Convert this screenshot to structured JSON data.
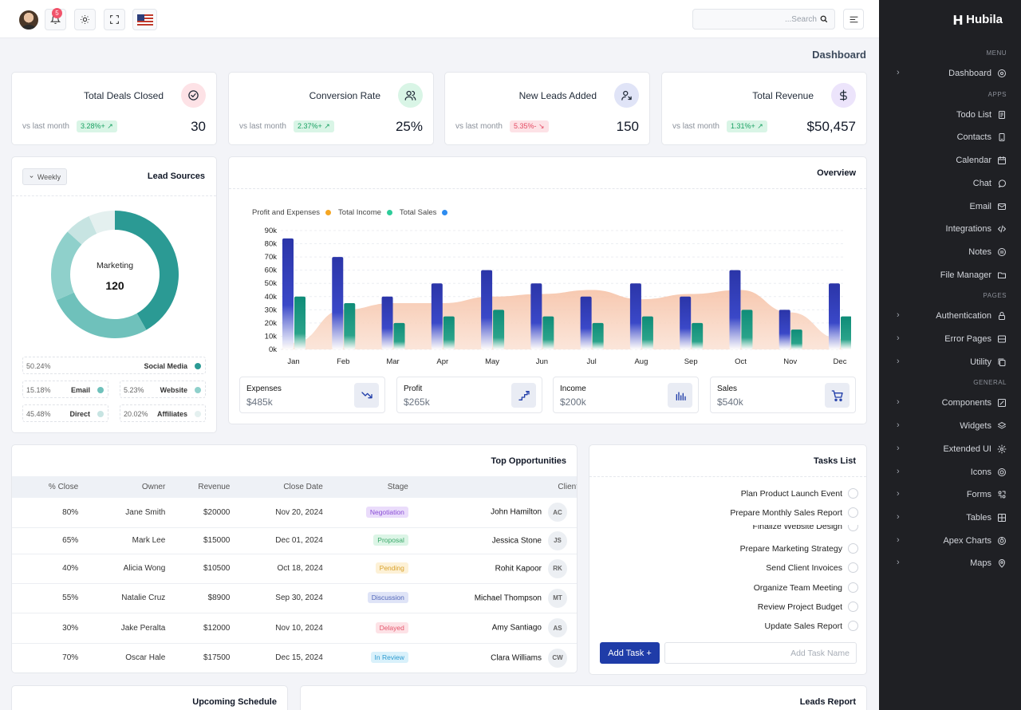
{
  "header": {
    "notifications_count": "5",
    "search_placeholder": "...Search"
  },
  "page_title": "Dashboard",
  "stats": [
    {
      "title": "Total Deals Closed",
      "vs": "vs last month",
      "change": "3.28%+",
      "trend": "up",
      "value": "30",
      "icon": "check-circle-icon",
      "color": "#fde2e6"
    },
    {
      "title": "Conversion Rate",
      "vs": "vs last month",
      "change": "2.37%+",
      "trend": "up",
      "value": "25%",
      "icon": "users-icon",
      "color": "#d9f5e6"
    },
    {
      "title": "New Leads Added",
      "vs": "vs last month",
      "change": "5.35%-",
      "trend": "down",
      "value": "150",
      "icon": "user-add-icon",
      "color": "#e0e4f7"
    },
    {
      "title": "Total Revenue",
      "vs": "vs last month",
      "change": "1.31%+",
      "trend": "up",
      "value": "$50,457",
      "icon": "dollar-icon",
      "color": "#ece4fb"
    }
  ],
  "lead_sources": {
    "title": "Lead Sources",
    "filter": "Weekly",
    "center_label": "Marketing",
    "center_value": "120",
    "items": [
      {
        "label": "Social Media",
        "pct": "50.24%",
        "color": "#2b9a94"
      },
      {
        "label": "Email",
        "pct": "15.18%",
        "color": "#6fc1bb"
      },
      {
        "label": "Website",
        "pct": "5.23%",
        "color": "#8fd0cb"
      },
      {
        "label": "Direct",
        "pct": "45.48%",
        "color": "#c7e4e2"
      },
      {
        "label": "Affiliates",
        "pct": "20.02%",
        "color": "#e4f0ef"
      }
    ]
  },
  "overview": {
    "title": "Overview",
    "legend": [
      {
        "label": "Profit and Expenses",
        "color": "#f5a623"
      },
      {
        "label": "Total Income",
        "color": "#2ecc9a"
      },
      {
        "label": "Total Sales",
        "color": "#2d8cf0"
      }
    ],
    "cards": [
      {
        "title": "Expenses",
        "value": "$485k",
        "icon": "trend-down-icon"
      },
      {
        "title": "Profit",
        "value": "$265k",
        "icon": "stairs-icon"
      },
      {
        "title": "Income",
        "value": "$200k",
        "icon": "bars-icon"
      },
      {
        "title": "Sales",
        "value": "$540k",
        "icon": "cart-icon"
      }
    ]
  },
  "chart_data": {
    "type": "bar",
    "title": "Overview",
    "categories": [
      "Jan",
      "Feb",
      "Mar",
      "Apr",
      "May",
      "Jun",
      "Jul",
      "Aug",
      "Sep",
      "Oct",
      "Nov",
      "Dec"
    ],
    "y_ticks": [
      "0k",
      "10k",
      "20k",
      "30k",
      "40k",
      "50k",
      "60k",
      "70k",
      "80k",
      "90k"
    ],
    "ylim": [
      0,
      90000
    ],
    "series": [
      {
        "name": "Total Sales",
        "type": "bar",
        "values": [
          84000,
          70000,
          40000,
          50000,
          60000,
          50000,
          40000,
          50000,
          40000,
          60000,
          30000,
          50000
        ]
      },
      {
        "name": "Total Income",
        "type": "bar",
        "values": [
          40000,
          35000,
          20000,
          25000,
          30000,
          25000,
          20000,
          25000,
          20000,
          30000,
          15000,
          25000
        ]
      },
      {
        "name": "Profit and Expenses",
        "type": "area",
        "values": [
          5000,
          30000,
          35000,
          35000,
          40000,
          42000,
          45000,
          38000,
          42000,
          45000,
          28000,
          8000
        ]
      }
    ]
  },
  "opportunities": {
    "title": "Top Opportunities",
    "columns": [
      "% Close",
      "Owner",
      "Revenue",
      "Close Date",
      "Stage",
      "Client"
    ],
    "rows": [
      {
        "close": "80%",
        "owner": "Jane Smith",
        "revenue": "$20000",
        "date": "Nov 20, 2024",
        "stage": "Negotiation",
        "client": "John Hamilton",
        "initials": "AC",
        "bg": "#eadcfb",
        "fg": "#8a4fd6"
      },
      {
        "close": "65%",
        "owner": "Mark Lee",
        "revenue": "$15000",
        "date": "Dec 01, 2024",
        "stage": "Proposal",
        "client": "Jessica Stone",
        "initials": "JS",
        "bg": "#dcf5e6",
        "fg": "#3aa86a"
      },
      {
        "close": "40%",
        "owner": "Alicia Wong",
        "revenue": "$10500",
        "date": "Oct 18, 2024",
        "stage": "Pending",
        "client": "Rohit Kapoor",
        "initials": "RK",
        "bg": "#fdf1d6",
        "fg": "#d9a22e"
      },
      {
        "close": "55%",
        "owner": "Natalie Cruz",
        "revenue": "$8900",
        "date": "Sep 30, 2024",
        "stage": "Discussion",
        "client": "Michael Thompson",
        "initials": "MT",
        "bg": "#dfe4f7",
        "fg": "#5166b8"
      },
      {
        "close": "30%",
        "owner": "Jake Peralta",
        "revenue": "$12000",
        "date": "Nov 10, 2024",
        "stage": "Delayed",
        "client": "Amy Santiago",
        "initials": "AS",
        "bg": "#fde2e6",
        "fg": "#e4576c"
      },
      {
        "close": "70%",
        "owner": "Oscar Hale",
        "revenue": "$17500",
        "date": "Dec 15, 2024",
        "stage": "In Review",
        "client": "Clara Williams",
        "initials": "CW",
        "bg": "#d9f1fb",
        "fg": "#2e9bd0"
      }
    ]
  },
  "tasks": {
    "title": "Tasks List",
    "items": [
      "Plan Product Launch Event",
      "Prepare Monthly Sales Report",
      "Finalize Website Design",
      "Prepare Marketing Strategy",
      "Send Client Invoices",
      "Organize Team Meeting",
      "Review Project Budget",
      "Update Sales Report"
    ],
    "add_label": "Add Task +",
    "input_placeholder": "Add Task Name"
  },
  "schedule": {
    "title": "Upcoming Schedule"
  },
  "leads_report": {
    "title": "Leads Report"
  },
  "sidebar": {
    "brand": "Hubila",
    "sections": [
      {
        "label": "MENU",
        "items": [
          {
            "label": "Dashboard",
            "chevron": true,
            "icon": "dashboard-icon"
          }
        ]
      },
      {
        "label": "APPS",
        "items": [
          {
            "label": "Todo List",
            "chevron": false,
            "icon": "todo-icon"
          },
          {
            "label": "Contacts",
            "chevron": false,
            "icon": "contacts-icon"
          },
          {
            "label": "Calendar",
            "chevron": false,
            "icon": "calendar-icon"
          },
          {
            "label": "Chat",
            "chevron": false,
            "icon": "chat-icon"
          },
          {
            "label": "Email",
            "chevron": false,
            "icon": "email-icon"
          },
          {
            "label": "Integrations",
            "chevron": false,
            "icon": "code-icon"
          },
          {
            "label": "Notes",
            "chevron": false,
            "icon": "notes-icon"
          },
          {
            "label": "File Manager",
            "chevron": false,
            "icon": "folder-icon"
          }
        ]
      },
      {
        "label": "PAGES",
        "items": [
          {
            "label": "Authentication",
            "chevron": true,
            "icon": "lock-icon"
          },
          {
            "label": "Error Pages",
            "chevron": true,
            "icon": "error-icon"
          },
          {
            "label": "Utility",
            "chevron": true,
            "icon": "utility-icon"
          }
        ]
      },
      {
        "label": "GENERAL",
        "items": [
          {
            "label": "Components",
            "chevron": true,
            "icon": "components-icon"
          },
          {
            "label": "Widgets",
            "chevron": true,
            "icon": "widgets-icon"
          },
          {
            "label": "Extended UI",
            "chevron": true,
            "icon": "gear-icon"
          },
          {
            "label": "Icons",
            "chevron": true,
            "icon": "icons-icon"
          },
          {
            "label": "Forms",
            "chevron": true,
            "icon": "forms-icon"
          },
          {
            "label": "Tables",
            "chevron": true,
            "icon": "tables-icon"
          },
          {
            "label": "Apex Charts",
            "chevron": true,
            "icon": "chart-icon"
          },
          {
            "label": "Maps",
            "chevron": true,
            "icon": "map-pin-icon"
          }
        ]
      }
    ]
  }
}
